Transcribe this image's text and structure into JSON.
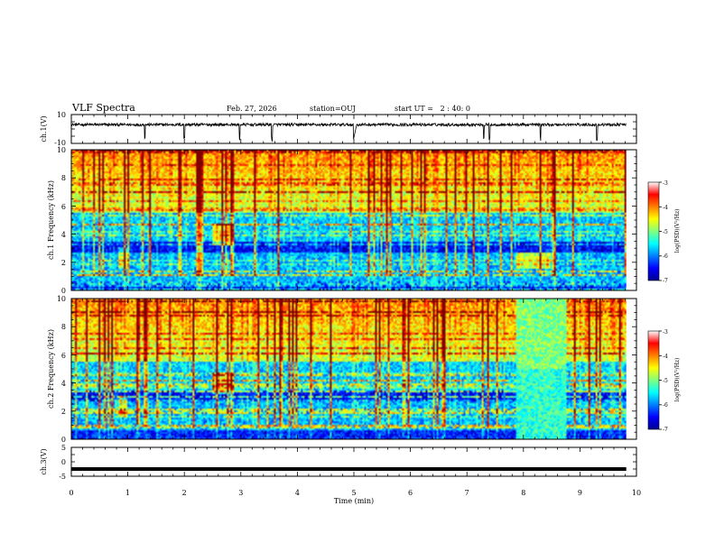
{
  "header": {
    "title": "VLF Spectra",
    "date": "Feb. 27, 2026",
    "station": "station=OUJ",
    "start_ut": "start UT =   2 : 40: 0"
  },
  "chart_data": [
    {
      "type": "line",
      "name": "ch.1 waveform",
      "ylabel": "ch.1(V)",
      "ylim": [
        -10,
        10
      ],
      "yticks": [
        "10",
        "-10"
      ],
      "xlim": [
        0,
        10
      ],
      "baseline_v": 3,
      "noise_v": 1,
      "spikes_min": [
        1.3,
        2.0,
        2.98,
        3.55,
        5.0,
        7.3,
        7.4,
        8.3,
        9.3
      ],
      "gaps_min": [
        [
          5.0,
          5.05
        ],
        [
          9.82,
          10
        ]
      ]
    },
    {
      "type": "heatmap",
      "name": "ch.1 spectrogram",
      "ylabel": "ch.1 Frequency (kHz)",
      "ylim": [
        0,
        10
      ],
      "yticks": [
        "0",
        "2",
        "4",
        "6",
        "8",
        "10"
      ],
      "xlim": [
        0,
        9.82
      ],
      "colorbar": {
        "label": "log(PSD)(V²/Hz)",
        "range": [
          -7,
          -3
        ],
        "ticks": [
          "-3",
          "-4",
          "-5",
          "-6",
          "-7"
        ]
      },
      "features": [
        {
          "t": 2.7,
          "f": 4.0,
          "note": "whistler burst"
        },
        {
          "t": 8.1,
          "f": 2.0,
          "note": "enhanced emission 8.0-8.6 min"
        }
      ]
    },
    {
      "type": "heatmap",
      "name": "ch.2 spectrogram",
      "ylabel": "ch.2 Frequency (kHz)",
      "ylim": [
        0,
        10
      ],
      "yticks": [
        "0",
        "2",
        "4",
        "6",
        "8",
        "10"
      ],
      "xlim": [
        0,
        9.82
      ],
      "colorbar": {
        "label": "log(PSD)(V²/Hz)",
        "range": [
          -7,
          -3
        ],
        "ticks": [
          "-3",
          "-4",
          "-5",
          "-6",
          "-7"
        ]
      },
      "features": [
        {
          "t": 2.75,
          "f": 4.0,
          "note": "whistler burst"
        },
        {
          "t": 8.0,
          "t_end": 8.9,
          "f": 0,
          "f_end": 10,
          "note": "broadband enhancement"
        }
      ]
    },
    {
      "type": "line",
      "name": "ch.3 waveform",
      "ylabel": "ch.3(V)",
      "ylim": [
        -5,
        5
      ],
      "yticks": [
        "5",
        "0",
        "-5"
      ],
      "xlim": [
        0,
        9.82
      ],
      "baseline_v": -2.5
    }
  ],
  "xaxis": {
    "label": "Time (min)",
    "range": [
      0,
      10
    ],
    "ticks": [
      "0",
      "1",
      "2",
      "3",
      "4",
      "5",
      "6",
      "7",
      "8",
      "9",
      "10"
    ]
  },
  "colors": {
    "jet": [
      "#00008f",
      "#0000ff",
      "#0080ff",
      "#00ffff",
      "#80ff80",
      "#ffff00",
      "#ff8000",
      "#ff0000",
      "#800000"
    ]
  }
}
